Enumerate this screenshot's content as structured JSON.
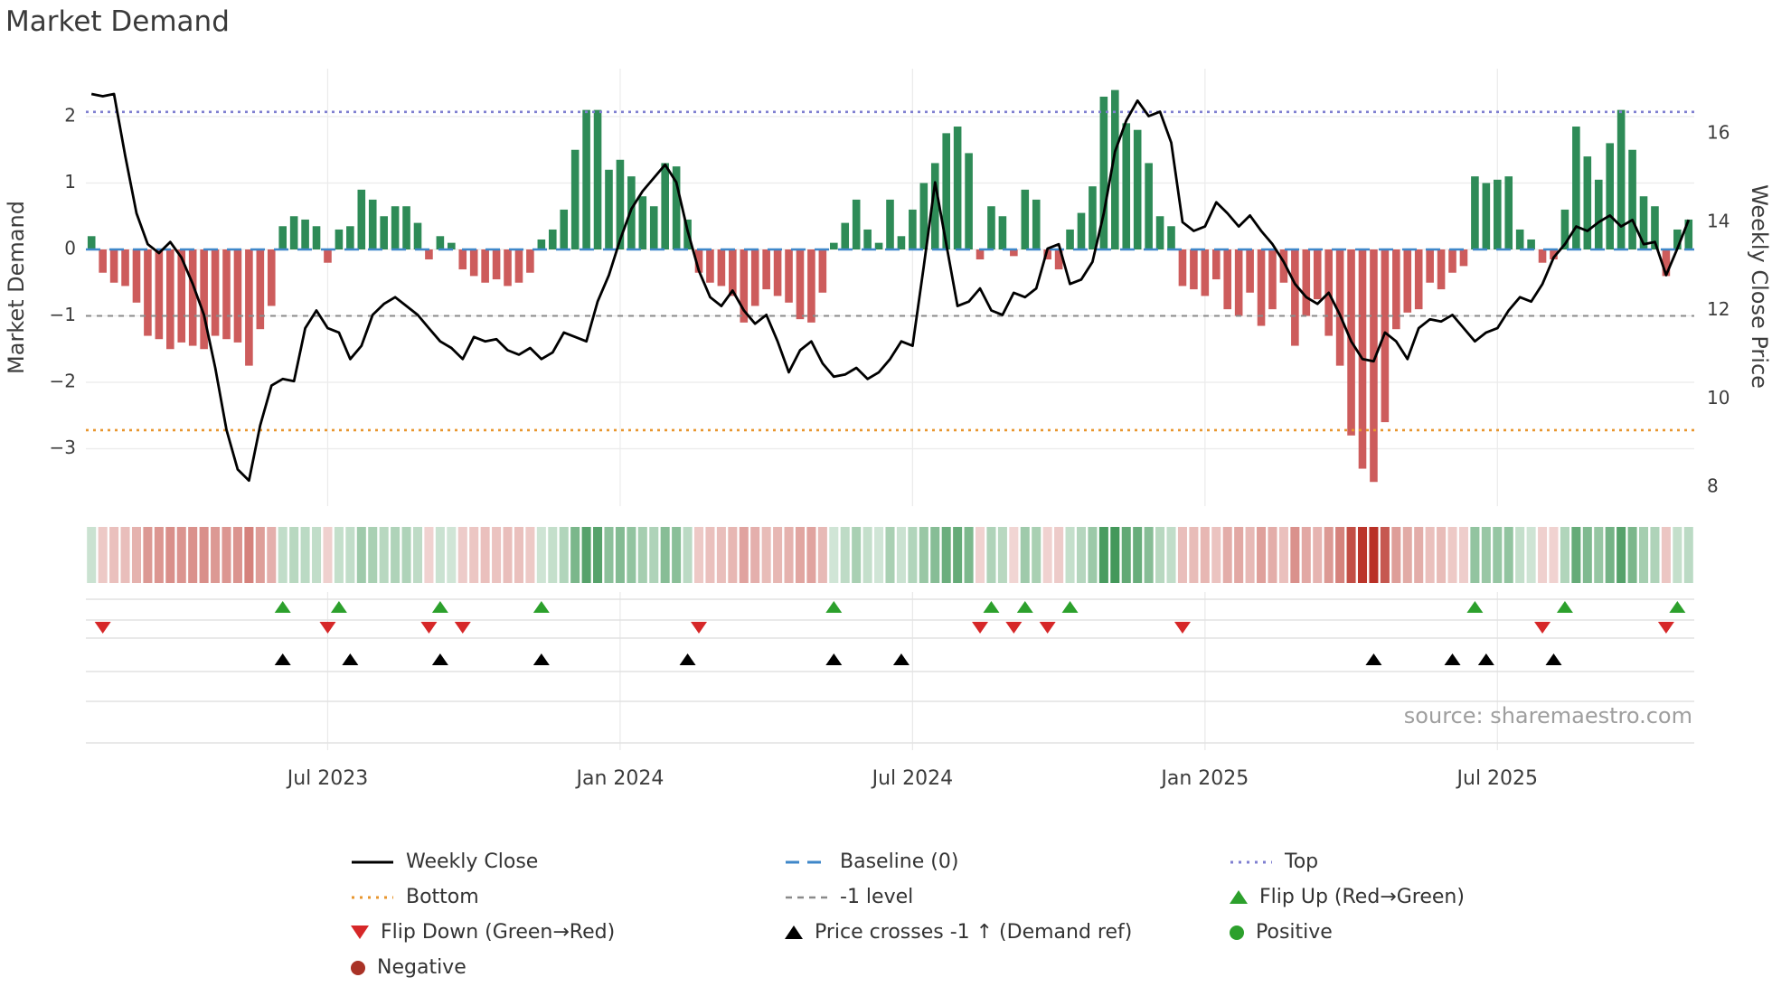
{
  "title": "Market Demand",
  "source": "source: sharemaestro.com",
  "axes": {
    "left_label": "Market Demand",
    "right_label": "Weekly Close Price",
    "demand_ticks": [
      "2",
      "1",
      "0",
      "−1",
      "−2",
      "−3"
    ],
    "demand_tick_values": [
      2,
      1,
      0,
      -1,
      -2,
      -3
    ],
    "price_ticks": [
      "16",
      "14",
      "12",
      "10",
      "8"
    ],
    "price_tick_values": [
      16,
      14,
      12,
      10,
      8
    ],
    "x_ticks": [
      {
        "label": "Jul 2023",
        "week": 21
      },
      {
        "label": "Jan 2024",
        "week": 47
      },
      {
        "label": "Jul 2024",
        "week": 73
      },
      {
        "label": "Jan 2025",
        "week": 99
      },
      {
        "label": "Jul 2025",
        "week": 125
      }
    ]
  },
  "colors": {
    "bar_positive": "#2e8b57",
    "bar_negative": "#cd5c5c",
    "price_line": "#000000",
    "top_line": "#7f7fd0",
    "baseline_line": "#3f87c9",
    "minus_one_line": "#8a8a8a",
    "bottom_line": "#e8962e",
    "flip_up_marker": "#2ca02c",
    "flip_down_marker": "#d62728",
    "price_cross_marker": "#000000",
    "positive_dot": "#2ca02c",
    "negative_dot": "#a93226"
  },
  "legend": {
    "weekly_close": "Weekly Close",
    "baseline": "Baseline (0)",
    "top": "Top",
    "bottom": "Bottom",
    "minus_one_level": "-1 level",
    "flip_up": "Flip Up (Red→Green)",
    "flip_down": "Flip Down (Green→Red)",
    "price_cross": "Price crosses -1 ↑ (Demand ref)",
    "positive": "Positive",
    "negative": "Negative"
  },
  "chart_data": {
    "type": "bar+line",
    "x_unit": "weekly",
    "n_points": 143,
    "demand_series_name": "Market Demand",
    "price_series_name": "Weekly Close",
    "demand_ylim": [
      -3.9,
      2.7
    ],
    "price_ylim": [
      7.6,
      17.5
    ],
    "reference_lines": {
      "top": 2.07,
      "baseline": 0,
      "minus_one": -1,
      "bottom": -2.72
    },
    "demand": [
      0.2,
      -0.35,
      -0.5,
      -0.55,
      -0.8,
      -1.3,
      -1.35,
      -1.5,
      -1.4,
      -1.45,
      -1.5,
      -1.3,
      -1.35,
      -1.4,
      -1.75,
      -1.2,
      -0.85,
      0.35,
      0.5,
      0.45,
      0.35,
      -0.2,
      0.3,
      0.35,
      0.9,
      0.75,
      0.5,
      0.65,
      0.65,
      0.4,
      -0.15,
      0.2,
      0.1,
      -0.3,
      -0.4,
      -0.5,
      -0.45,
      -0.55,
      -0.5,
      -0.35,
      0.15,
      0.3,
      0.6,
      1.5,
      2.1,
      2.1,
      1.2,
      1.35,
      1.1,
      0.8,
      0.65,
      1.3,
      1.25,
      0.45,
      -0.35,
      -0.5,
      -0.55,
      -0.7,
      -1.1,
      -0.85,
      -0.6,
      -0.7,
      -0.8,
      -1.05,
      -1.1,
      -0.65,
      0.1,
      0.4,
      0.75,
      0.3,
      0.1,
      0.75,
      0.2,
      0.6,
      1.0,
      1.3,
      1.75,
      1.85,
      1.45,
      -0.15,
      0.65,
      0.5,
      -0.1,
      0.9,
      0.75,
      -0.15,
      -0.3,
      0.3,
      0.55,
      0.95,
      2.3,
      2.4,
      1.9,
      1.8,
      1.3,
      0.5,
      0.35,
      -0.55,
      -0.6,
      -0.7,
      -0.45,
      -0.9,
      -1.0,
      -0.65,
      -1.15,
      -0.9,
      -0.5,
      -1.45,
      -1.0,
      -0.75,
      -1.3,
      -1.75,
      -2.8,
      -3.3,
      -3.5,
      -2.6,
      -1.2,
      -0.95,
      -0.9,
      -0.5,
      -0.6,
      -0.35,
      -0.25,
      1.1,
      1.0,
      1.05,
      1.1,
      0.3,
      0.15,
      -0.2,
      -0.15,
      0.6,
      1.85,
      1.4,
      1.05,
      1.6,
      2.1,
      1.5,
      0.8,
      0.65,
      -0.4,
      0.3,
      0.45
    ],
    "price": [
      16.9,
      16.85,
      16.9,
      15.5,
      14.2,
      13.5,
      13.3,
      13.55,
      13.2,
      12.6,
      11.9,
      10.7,
      9.3,
      8.4,
      8.15,
      9.4,
      10.3,
      10.45,
      10.4,
      11.6,
      12.0,
      11.6,
      11.5,
      10.9,
      11.2,
      11.9,
      12.15,
      12.3,
      12.1,
      11.9,
      11.6,
      11.3,
      11.15,
      10.9,
      11.4,
      11.3,
      11.35,
      11.1,
      11.0,
      11.15,
      10.9,
      11.05,
      11.5,
      11.4,
      11.3,
      12.2,
      12.8,
      13.6,
      14.3,
      14.7,
      15.0,
      15.3,
      14.9,
      13.8,
      12.9,
      12.3,
      12.1,
      12.45,
      12.0,
      11.7,
      11.9,
      11.3,
      10.6,
      11.1,
      11.3,
      10.8,
      10.5,
      10.55,
      10.7,
      10.45,
      10.6,
      10.9,
      11.3,
      11.2,
      13.0,
      14.9,
      13.5,
      12.1,
      12.2,
      12.5,
      12.0,
      11.9,
      12.4,
      12.3,
      12.5,
      13.4,
      13.5,
      12.6,
      12.7,
      13.1,
      14.2,
      15.6,
      16.3,
      16.75,
      16.4,
      16.5,
      15.8,
      14.0,
      13.8,
      13.9,
      14.45,
      14.2,
      13.9,
      14.15,
      13.8,
      13.5,
      13.1,
      12.6,
      12.3,
      12.15,
      12.4,
      11.9,
      11.3,
      10.9,
      10.85,
      11.5,
      11.3,
      10.9,
      11.6,
      11.8,
      11.75,
      11.9,
      11.6,
      11.3,
      11.5,
      11.6,
      12.0,
      12.3,
      12.2,
      12.6,
      13.2,
      13.5,
      13.9,
      13.8,
      14.0,
      14.15,
      13.9,
      14.05,
      13.5,
      13.55,
      12.8,
      13.4,
      14.05
    ],
    "flip_up_weeks": [
      17,
      22,
      31,
      40,
      66,
      80,
      83,
      87,
      123,
      131,
      141
    ],
    "flip_down_weeks": [
      1,
      21,
      30,
      33,
      54,
      79,
      82,
      85,
      97,
      129,
      140
    ],
    "price_cross_weeks": [
      17,
      23,
      31,
      40,
      53,
      66,
      72,
      114,
      121,
      124,
      130
    ]
  }
}
